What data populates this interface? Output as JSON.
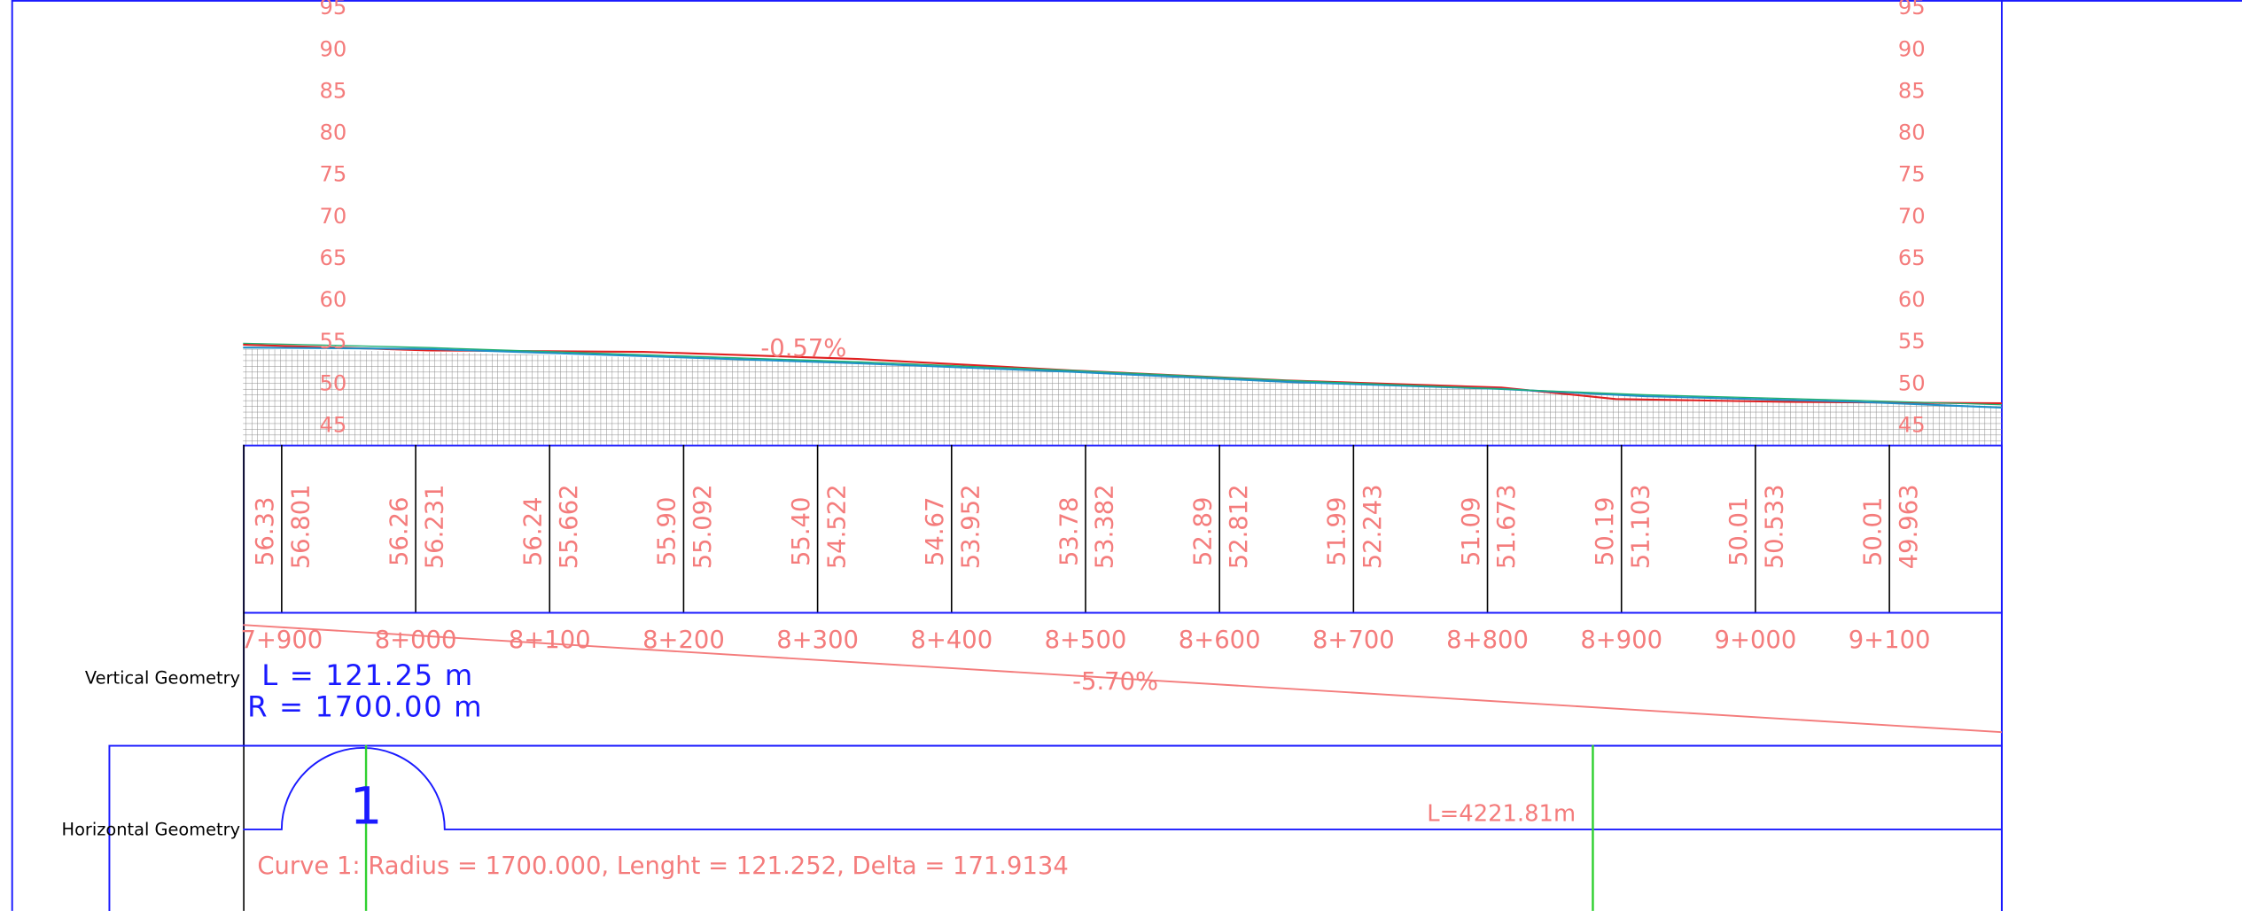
{
  "elevation_labels": [
    95,
    90,
    85,
    80,
    75,
    70,
    65,
    60,
    55,
    50,
    45
  ],
  "grade_labels": [
    "-0.57%",
    "-5.70%"
  ],
  "stations": [
    {
      "label": "7+900",
      "existing": "56.33",
      "design": "56.801"
    },
    {
      "label": "8+000",
      "existing": "56.26",
      "design": "56.231"
    },
    {
      "label": "8+100",
      "existing": "56.24",
      "design": "55.662"
    },
    {
      "label": "8+200",
      "existing": "55.90",
      "design": "55.092"
    },
    {
      "label": "8+300",
      "existing": "55.40",
      "design": "54.522"
    },
    {
      "label": "8+400",
      "existing": "54.67",
      "design": "53.952"
    },
    {
      "label": "8+500",
      "existing": "53.78",
      "design": "53.382"
    },
    {
      "label": "8+600",
      "existing": "52.89",
      "design": "52.812"
    },
    {
      "label": "8+700",
      "existing": "51.99",
      "design": "52.243"
    },
    {
      "label": "8+800",
      "existing": "51.09",
      "design": "51.673"
    },
    {
      "label": "8+900",
      "existing": "50.19",
      "design": "51.103"
    },
    {
      "label": "9+000",
      "existing": "50.01",
      "design": "50.533"
    },
    {
      "label": "9+100",
      "existing": "50.01",
      "design": "49.963"
    }
  ],
  "vertical_geometry": {
    "title": "Vertical Geometry",
    "length": "L = 121.25 m",
    "radius": "R = 1700.00 m"
  },
  "horizontal_geometry": {
    "title": "Horizontal Geometry",
    "curve_number": "1",
    "total_length": "L=4221.81m",
    "curve_info": "Curve 1: Radius = 1700.000, Lenght = 121.252, Delta = 171.9134"
  }
}
